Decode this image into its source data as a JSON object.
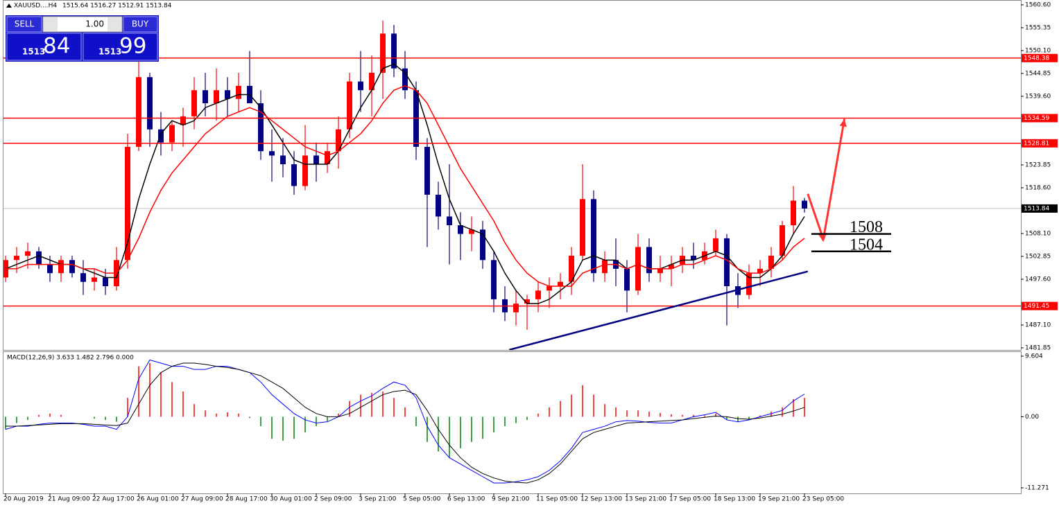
{
  "header": {
    "symbol": "XAUUSD....H4",
    "ohlc": "1515.64 1516.27 1512.91 1513.84"
  },
  "trade_panel": {
    "sell": "SELL",
    "lots": "1.00",
    "buy": "BUY",
    "sell_big": "1513",
    "sell_small": "84",
    "buy_big": "1513",
    "buy_small": "99"
  },
  "chart_data": [
    {
      "type": "candlestick",
      "categories": [
        "20 Aug 2019",
        null,
        null,
        null,
        "21 Aug 09:00",
        null,
        null,
        null,
        "22 Aug 17:00",
        null,
        null,
        null,
        "26 Aug 01:00",
        null,
        null,
        null,
        "27 Aug 09:00",
        null,
        null,
        null,
        "28 Aug 17:00",
        null,
        null,
        null,
        "30 Aug 01:00",
        null,
        null,
        null,
        "2 Sep 09:00",
        null,
        null,
        null,
        "3 Sep 21:00",
        null,
        null,
        null,
        "5 Sep 05:00",
        null,
        null,
        null,
        "6 Sep 13:00",
        null,
        null,
        null,
        "9 Sep 21:00",
        null,
        null,
        null,
        "11 Sep 05:00",
        null,
        null,
        null,
        "12 Sep 13:00",
        null,
        null,
        null,
        "13 Sep 21:00",
        null,
        null,
        null,
        "17 Sep 05:00",
        null,
        null,
        null,
        "18 Sep 13:00",
        null,
        null,
        null,
        "19 Sep 21:00",
        null,
        null,
        null,
        "23 Sep 05:00"
      ],
      "open": [
        1498,
        1502,
        1503,
        1504,
        1501,
        1499,
        1502,
        1499,
        1497,
        1498,
        1496,
        1502,
        1528,
        1544,
        1532,
        1529,
        1533,
        1535,
        1541,
        1538,
        1541,
        1539,
        1542,
        1538,
        1527,
        1526,
        1524,
        1519,
        1526,
        1524,
        1527,
        1532,
        1543,
        1541,
        1545,
        1554,
        1546,
        1541,
        1528,
        1517,
        1512,
        1510,
        1508,
        1509,
        1502,
        1493,
        1490,
        1492,
        1493,
        1495,
        1496,
        1497,
        1503,
        1516,
        1499,
        1502,
        1500,
        1495,
        1505,
        1499,
        1500,
        1501,
        1503,
        1502,
        1504,
        1507,
        1496,
        1494,
        1499,
        1500,
        1503,
        1510,
        1515.64
      ],
      "high": [
        1503,
        1505,
        1506,
        1505,
        1503,
        1503,
        1503,
        1502,
        1500,
        1500,
        1505,
        1531,
        1548,
        1545,
        1536,
        1534,
        1537,
        1544,
        1545,
        1546,
        1544,
        1545,
        1550,
        1541,
        1532,
        1530,
        1527,
        1533,
        1529,
        1529,
        1535,
        1545,
        1550,
        1549,
        1557,
        1556,
        1550,
        1543,
        1530,
        1520,
        1524,
        1513,
        1512,
        1511,
        1504,
        1496,
        1495,
        1494,
        1497,
        1498,
        1499,
        1505,
        1524,
        1518,
        1504,
        1507,
        1502,
        1508,
        1507,
        1503,
        1503,
        1505,
        1506,
        1506,
        1509,
        1508,
        1499,
        1501,
        1502,
        1505,
        1511,
        1519,
        1516.27
      ],
      "low": [
        1497,
        1499,
        1500,
        1500,
        1497,
        1497,
        1498,
        1494,
        1495,
        1494,
        1495,
        1500,
        1527,
        1528,
        1526,
        1527,
        1528,
        1532,
        1535,
        1534,
        1535,
        1536,
        1538,
        1525,
        1520,
        1521,
        1517,
        1518,
        1520,
        1522,
        1523,
        1530,
        1536,
        1535,
        1539,
        1544,
        1539,
        1525,
        1505,
        1509,
        1501,
        1502,
        1504,
        1500,
        1490,
        1488,
        1487,
        1486,
        1490,
        1491,
        1493,
        1494,
        1502,
        1497,
        1497,
        1496,
        1490,
        1494,
        1497,
        1497,
        1496,
        1499,
        1500,
        1501,
        1503,
        1487,
        1491,
        1493,
        1496,
        1498,
        1502,
        1508,
        1512.91
      ],
      "close": [
        1502,
        1503,
        1504,
        1501,
        1499,
        1502,
        1499,
        1497,
        1498,
        1496,
        1502,
        1528,
        1544,
        1532,
        1529,
        1533,
        1535,
        1541,
        1538,
        1541,
        1539,
        1542,
        1538,
        1527,
        1526,
        1524,
        1519,
        1526,
        1524,
        1527,
        1532,
        1543,
        1541,
        1545,
        1554,
        1546,
        1541,
        1528,
        1517,
        1512,
        1510,
        1508,
        1509,
        1502,
        1493,
        1490,
        1492,
        1493,
        1495,
        1496,
        1497,
        1503,
        1516,
        1499,
        1502,
        1500,
        1495,
        1505,
        1499,
        1500,
        1501,
        1503,
        1502,
        1504,
        1507,
        1496,
        1494,
        1499,
        1500,
        1503,
        1510,
        1515.64,
        1513.84
      ],
      "up_color": "#ff0000",
      "down_color": "#000080",
      "lines": [
        {
          "color": "#000000",
          "values": [
            1500,
            1501,
            1502,
            1503,
            1502,
            1501,
            1501,
            1500,
            1499,
            1498,
            1498,
            1506,
            1516,
            1524,
            1531,
            1534,
            1533,
            1534,
            1537,
            1538,
            1539,
            1540,
            1540,
            1537,
            1533,
            1529,
            1525,
            1524,
            1524,
            1524,
            1527,
            1532,
            1537,
            1541,
            1546,
            1547,
            1545,
            1541,
            1533,
            1524,
            1516,
            1510,
            1509,
            1508,
            1504,
            1499,
            1495,
            1492,
            1492,
            1493,
            1495,
            1497,
            1502,
            1503,
            1502,
            1502,
            1500,
            1501,
            1500,
            1500,
            1501,
            1502,
            1502,
            1503,
            1504,
            1503,
            1500,
            1498,
            1498,
            1500,
            1503,
            1508,
            1512
          ]
        },
        {
          "color": "#ff0000",
          "values": [
            1500,
            1500,
            1501,
            1501,
            1501,
            1501,
            1501,
            1500,
            1500,
            1499,
            1499,
            1502,
            1507,
            1513,
            1518,
            1522,
            1525,
            1528,
            1531,
            1533,
            1535,
            1536,
            1537,
            1536,
            1534,
            1532,
            1530,
            1528,
            1527,
            1526,
            1527,
            1529,
            1531,
            1534,
            1538,
            1541,
            1542,
            1541,
            1538,
            1533,
            1528,
            1523,
            1519,
            1515,
            1511,
            1506,
            1502,
            1499,
            1497,
            1496,
            1496,
            1496,
            1499,
            1500,
            1501,
            1501,
            1500,
            1501,
            1500,
            1500,
            1500,
            1501,
            1501,
            1502,
            1503,
            1502,
            1500,
            1499,
            1499,
            1500,
            1502,
            1505,
            1507
          ]
        }
      ],
      "ylim": [
        1481.37,
        1561.71
      ],
      "yticks": [
        {
          "value": 1560.6,
          "label": "1560.60"
        },
        1555.35,
        {
          "value": 1550.1,
          "label": "1550.10"
        },
        1544.85,
        {
          "value": 1539.6,
          "label": "1539.60"
        },
        1523.85,
        {
          "value": 1518.6,
          "label": "1518.60"
        },
        {
          "value": 1508.1,
          "label": "1508.10"
        },
        1502.85,
        {
          "value": 1497.6,
          "label": "1497.60"
        },
        {
          "value": 1487.1,
          "label": "1487.10"
        },
        1481.85
      ],
      "levels": [
        {
          "value": 1548.38,
          "color": "#ff0000"
        },
        {
          "value": 1534.59,
          "color": "#ff0000"
        },
        {
          "value": 1528.81,
          "color": "#ff0000"
        },
        {
          "value": 1491.45,
          "color": "#ff0000"
        }
      ],
      "current_price": 1513.84,
      "annotations": [
        {
          "text": "1508",
          "value": 1508
        },
        {
          "text": "1504",
          "value": 1504
        }
      ],
      "trendline": {
        "x": [
          45.4,
          72.3
        ],
        "y": [
          1481.4,
          1499.4
        ],
        "color": "#000080"
      },
      "arrow": {
        "x": [
          72.3,
          73.7,
          75.6
        ],
        "y": [
          1517.2,
          1506.8,
          1534.4
        ],
        "color": "#ff3333"
      }
    },
    {
      "type": "macd",
      "title": "MACD(12,26,9) 3.633 1.482 2.796 0.000",
      "histogram": [
        -2,
        -1,
        -0.5,
        0.3,
        0.5,
        0.3,
        0,
        0,
        -0.3,
        -0.5,
        -0.8,
        3,
        8,
        8.5,
        7,
        5.5,
        4,
        2,
        1,
        0.5,
        0.7,
        0.5,
        -0.2,
        -1.5,
        -3.5,
        -3.8,
        -3.5,
        -2.5,
        -1.5,
        -0.7,
        0.5,
        2.5,
        3.5,
        3.8,
        4,
        3,
        1.5,
        -1.5,
        -4,
        -5.5,
        -6.5,
        -5,
        -4,
        -3.5,
        -2.5,
        -1.5,
        -1,
        -0.5,
        0.5,
        1.5,
        2.5,
        3.5,
        5,
        3.5,
        2,
        1.5,
        1,
        1,
        0.8,
        0.6,
        0.4,
        0.3,
        0.3,
        0.2,
        0.5,
        -0.5,
        -0.8,
        -0.5,
        0.2,
        0.8,
        1.5,
        2.8,
        3
      ],
      "pos_color": "#ff0000",
      "neg_color": "#008000",
      "macd": {
        "color": "#0000ff",
        "values": [
          -2,
          -1.5,
          -1.5,
          -1.2,
          -1,
          -1,
          -1,
          -1.2,
          -1.5,
          -1.5,
          -2,
          0,
          6,
          9,
          8.5,
          8,
          8,
          7.5,
          7.5,
          8,
          8,
          7.5,
          7,
          5.5,
          3.5,
          2,
          0.5,
          -0.5,
          -1,
          -0.8,
          0,
          1.5,
          2.5,
          3.3,
          4.5,
          5.5,
          5,
          3,
          -1.5,
          -4.5,
          -6.5,
          -7.5,
          -8.5,
          -9.5,
          -10.5,
          -10.5,
          -10.3,
          -10,
          -9.5,
          -8.5,
          -7,
          -5,
          -2.5,
          -2,
          -1.5,
          -0.8,
          -0.6,
          -0.7,
          -0.9,
          -1,
          -1,
          -0.5,
          0,
          0.3,
          0.7,
          -0.5,
          -0.8,
          -0.5,
          0,
          0.5,
          1,
          2.5,
          3.6
        ]
      },
      "signal": {
        "color": "#000000",
        "values": [
          -1.5,
          -1.5,
          -1.4,
          -1.3,
          -1.2,
          -1.1,
          -1.1,
          -1.1,
          -1.2,
          -1.3,
          -1.4,
          -1,
          2,
          5,
          7,
          8,
          8.5,
          8.5,
          8.3,
          8,
          7.8,
          7.5,
          7,
          6.5,
          5.5,
          4.5,
          3,
          1.5,
          0.5,
          0,
          0,
          0.5,
          1.5,
          2.5,
          3.5,
          4,
          4.2,
          3.5,
          1,
          -2,
          -4.5,
          -6.5,
          -8,
          -9,
          -9.7,
          -10.2,
          -10.4,
          -10.5,
          -10,
          -9,
          -7.5,
          -5.5,
          -3.5,
          -2.5,
          -2,
          -1.5,
          -1,
          -0.9,
          -0.8,
          -0.7,
          -0.6,
          -0.5,
          -0.3,
          -0.1,
          0.1,
          0,
          -0.3,
          -0.4,
          -0.2,
          0.1,
          0.4,
          0.9,
          1.48
        ]
      },
      "ylim": [
        -12.15,
        10.37
      ],
      "yticks": [
        9.604,
        {
          "value": 0,
          "label": "0.00"
        },
        -11.271
      ]
    }
  ]
}
